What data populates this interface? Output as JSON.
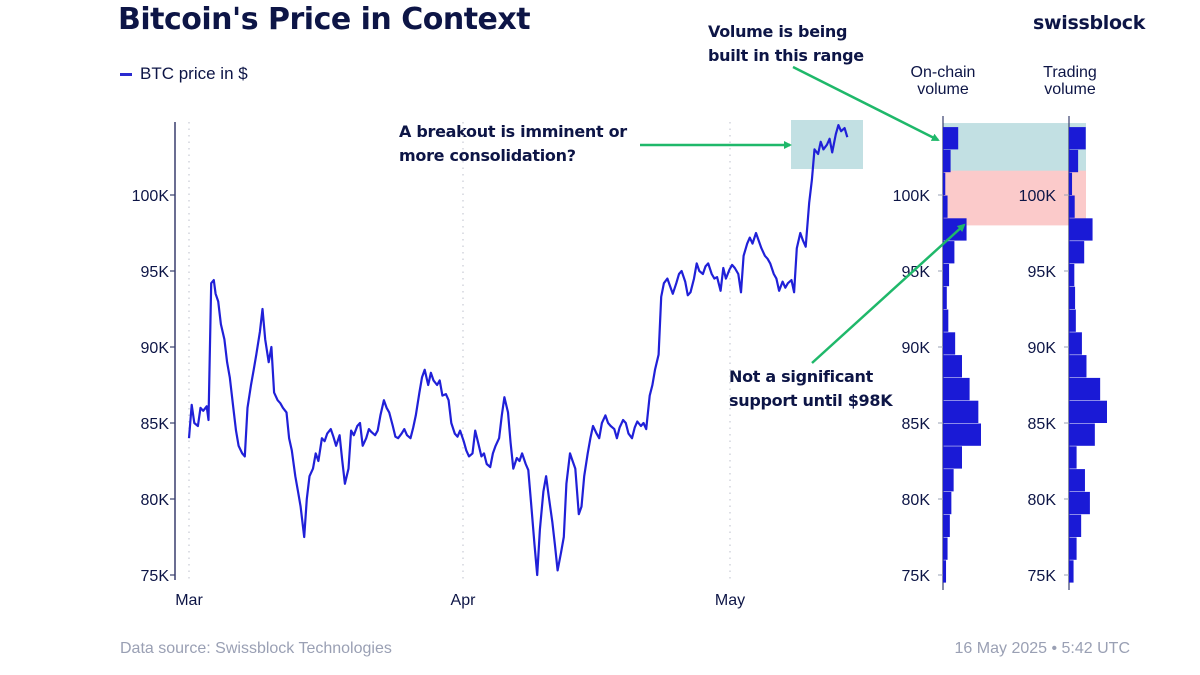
{
  "header": {
    "title": "Bitcoin's Price in Context",
    "brand": "swissblock"
  },
  "legend": {
    "label": "BTC price in $",
    "color": "#2a2ad0"
  },
  "annotations": {
    "breakout": [
      "A breakout is imminent or",
      "more consolidation?"
    ],
    "volume_range": [
      "Volume is being",
      "built in this range"
    ],
    "support": [
      "Not a significant",
      "support until $98K"
    ]
  },
  "volume_headers": {
    "onchain": [
      "On-chain",
      "volume"
    ],
    "trading": [
      "Trading",
      "volume"
    ]
  },
  "footer": {
    "source": "Data source: Swissblock Technologies",
    "timestamp": "16 May 2025 • 5:42 UTC"
  },
  "colors": {
    "line": "#2020d8",
    "bars": "#1a1ad6",
    "arrow": "#1fb86a",
    "consolidation_band": "#c2e0e3",
    "support_band": "#fbcaca",
    "axis": "#3a3f6e"
  },
  "chart_data": [
    {
      "type": "line",
      "title": "Bitcoin's Price in Context",
      "xlabel": "",
      "ylabel": "",
      "series_name": "BTC price in $",
      "x_ticks": [
        "Mar",
        "Apr",
        "May"
      ],
      "y_ticks": [
        "75K",
        "80K",
        "85K",
        "90K",
        "95K",
        "100K"
      ],
      "ylim": [
        74800,
        104800
      ],
      "xlim_days_from_mar1": [
        0,
        75
      ],
      "grid": "vertical dotted at month starts",
      "x_days_from_mar1": [
        0,
        0.3,
        0.6,
        1,
        1.3,
        1.6,
        2,
        2.2,
        2.5,
        2.8,
        3,
        3.3,
        3.6,
        4,
        4.3,
        4.6,
        5,
        5.3,
        5.6,
        6,
        6.3,
        6.6,
        7,
        7.3,
        7.6,
        8,
        8.3,
        8.6,
        9,
        9.3,
        9.6,
        10,
        10.3,
        10.6,
        11,
        11.3,
        11.6,
        12,
        12.3,
        12.6,
        13,
        13.3,
        13.6,
        14,
        14.3,
        14.6,
        15,
        15.3,
        15.6,
        16,
        16.3,
        16.6,
        17,
        17.3,
        17.6,
        18,
        18.3,
        18.6,
        19,
        19.3,
        19.6,
        20,
        20.3,
        20.6,
        21,
        21.3,
        21.6,
        22,
        22.3,
        22.6,
        23,
        23.3,
        23.6,
        24,
        24.3,
        24.6,
        25,
        25.3,
        25.6,
        26,
        26.3,
        26.6,
        27,
        27.3,
        27.6,
        28,
        28.3,
        28.6,
        29,
        29.3,
        29.6,
        30,
        30.3,
        30.6,
        31,
        31.3,
        31.6,
        32,
        32.3,
        32.6,
        33,
        33.3,
        33.6,
        34,
        34.3,
        34.6,
        35,
        35.3,
        35.6,
        36,
        36.3,
        36.6,
        37,
        37.3,
        37.6,
        38,
        38.3,
        38.6,
        39,
        39.3,
        39.6,
        40,
        40.3,
        40.6,
        41,
        41.3,
        41.6,
        42,
        42.3,
        42.6,
        43,
        43.3,
        43.6,
        44,
        44.3,
        44.6,
        45,
        45.3,
        45.6,
        46,
        46.3,
        46.6,
        47,
        47.3,
        47.6,
        48,
        48.3,
        48.6,
        49,
        49.3,
        49.6,
        50,
        50.3,
        50.6,
        51,
        51.3,
        51.6,
        52,
        52.3,
        52.6,
        53,
        53.3,
        53.6,
        54,
        54.3,
        54.6,
        55,
        55.3,
        55.6,
        56,
        56.3,
        56.6,
        57,
        57.3,
        57.6,
        58,
        58.3,
        58.6,
        59,
        59.3,
        59.6,
        60,
        60.3,
        60.6,
        61,
        61.3,
        61.6,
        62,
        62.3,
        62.6,
        63,
        63.3,
        63.6,
        64,
        64.3,
        64.6,
        65,
        65.3,
        65.6,
        66,
        66.3,
        66.6,
        67,
        67.3,
        67.6,
        68,
        68.3,
        68.6,
        69,
        69.3,
        69.6,
        70,
        70.3,
        70.6,
        71,
        71.3,
        71.6,
        72,
        72.3,
        72.6,
        73,
        73.3,
        73.6,
        74,
        74.3
      ],
      "y_price": [
        84000,
        86200,
        85000,
        84800,
        86000,
        85800,
        86100,
        85200,
        94200,
        94400,
        93500,
        93000,
        91500,
        90500,
        89000,
        88000,
        86000,
        84500,
        83500,
        83000,
        82800,
        86000,
        87500,
        88500,
        89500,
        91000,
        92500,
        90500,
        89000,
        90000,
        87000,
        86500,
        86300,
        86000,
        85700,
        84000,
        83200,
        81500,
        80500,
        79500,
        77500,
        80000,
        81500,
        82000,
        83000,
        82500,
        84000,
        83800,
        84300,
        84600,
        84100,
        83500,
        84200,
        82500,
        81000,
        82000,
        84500,
        84200,
        84800,
        85000,
        83500,
        84000,
        84600,
        84400,
        84200,
        84500,
        85500,
        86500,
        86000,
        85700,
        84800,
        84100,
        84000,
        84300,
        84600,
        84200,
        84000,
        84700,
        85500,
        87000,
        88000,
        88500,
        87500,
        88300,
        87800,
        87500,
        87800,
        86800,
        86900,
        86500,
        85000,
        84300,
        84100,
        84500,
        83800,
        83200,
        82800,
        83000,
        84500,
        83800,
        82800,
        83000,
        82300,
        82100,
        83000,
        83500,
        84000,
        85500,
        86700,
        85700,
        83700,
        82000,
        82700,
        82500,
        83000,
        82300,
        81900,
        79800,
        77000,
        75000,
        78000,
        80500,
        81500,
        80200,
        78500,
        77000,
        75300,
        76500,
        77500,
        81000,
        83000,
        82500,
        82000,
        79000,
        79500,
        81500,
        83000,
        84000,
        84800,
        84300,
        84000,
        85000,
        85500,
        85000,
        84800,
        84600,
        84000,
        84700,
        85200,
        85000,
        84300,
        84000,
        84700,
        85100,
        84800,
        85000,
        84600,
        86800,
        87500,
        88500,
        89500,
        93300,
        94200,
        94500,
        94000,
        93500,
        94200,
        94800,
        95000,
        94300,
        93400,
        93600,
        94500,
        95500,
        95000,
        94800,
        95300,
        95500,
        94800,
        94500,
        94600,
        93700,
        95200,
        94500,
        95100,
        95400,
        95200,
        94800,
        93600,
        96000,
        96800,
        97200,
        96800,
        97500,
        97000,
        96500,
        96000,
        95800,
        95500,
        94800,
        94500,
        93700,
        94300,
        93900,
        94200,
        94400,
        93600,
        96500,
        97500,
        97000,
        96600,
        99500,
        101000,
        103000,
        102700,
        103500,
        103000,
        103300,
        103700,
        102800,
        104000,
        104600,
        104200,
        104400,
        103800,
        102000,
        101700,
        103000,
        104300,
        104500,
        103500,
        103800,
        103600,
        103700,
        103400
      ]
    },
    {
      "type": "bar",
      "orientation": "horizontal",
      "title": "On-chain volume",
      "y_ticks": [
        "75K",
        "80K",
        "85K",
        "90K",
        "95K",
        "100K"
      ],
      "bin_size": 1500,
      "bin_starts": [
        74500,
        76000,
        77500,
        79000,
        80500,
        82000,
        83500,
        85000,
        86500,
        88000,
        89500,
        91000,
        92500,
        94000,
        95500,
        97000,
        98500,
        100000,
        101500,
        103000
      ],
      "values": [
        0.08,
        0.12,
        0.18,
        0.22,
        0.28,
        0.5,
        1.0,
        0.93,
        0.7,
        0.5,
        0.32,
        0.14,
        0.1,
        0.16,
        0.3,
        0.62,
        0.12,
        0.06,
        0.2,
        0.4
      ],
      "value_units": "relative"
    },
    {
      "type": "bar",
      "orientation": "horizontal",
      "title": "Trading volume",
      "y_ticks": [
        "75K",
        "80K",
        "85K",
        "90K",
        "95K",
        "100K"
      ],
      "bin_size": 1500,
      "bin_starts": [
        74500,
        76000,
        77500,
        79000,
        80500,
        82000,
        83500,
        85000,
        86500,
        88000,
        89500,
        91000,
        92500,
        94000,
        95500,
        97000,
        98500,
        100000,
        101500,
        103000
      ],
      "values": [
        0.12,
        0.2,
        0.32,
        0.55,
        0.42,
        0.2,
        0.68,
        1.0,
        0.82,
        0.46,
        0.34,
        0.18,
        0.16,
        0.14,
        0.4,
        0.62,
        0.15,
        0.08,
        0.24,
        0.44
      ],
      "value_units": "relative"
    }
  ],
  "highlights": {
    "consolidation_range": [
      101500,
      104800
    ],
    "support_gap_range": [
      98000,
      101600
    ]
  }
}
